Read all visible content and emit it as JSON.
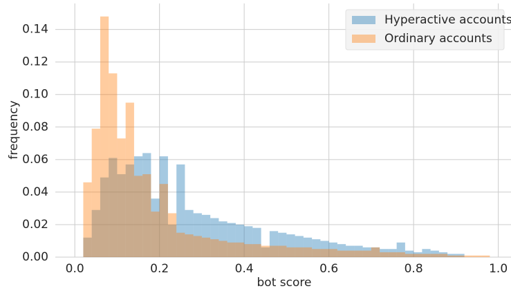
{
  "chart_data": {
    "type": "histogram",
    "xlabel": "bot score",
    "ylabel": "frequency",
    "bins": [
      0.02,
      0.04,
      0.06,
      0.08,
      0.1,
      0.12,
      0.14,
      0.16,
      0.18,
      0.2,
      0.22,
      0.24,
      0.26,
      0.28,
      0.3,
      0.32,
      0.34,
      0.36,
      0.38,
      0.4,
      0.42,
      0.44,
      0.46,
      0.48,
      0.5,
      0.52,
      0.54,
      0.56,
      0.58,
      0.6,
      0.62,
      0.64,
      0.66,
      0.68,
      0.7,
      0.72,
      0.74,
      0.76,
      0.78,
      0.8,
      0.82,
      0.84,
      0.86,
      0.88,
      0.9,
      0.92,
      0.94,
      0.96,
      0.98
    ],
    "series": [
      {
        "name": "Hyperactive accounts",
        "color": "#1f77b4",
        "values": [
          0.012,
          0.029,
          0.049,
          0.061,
          0.051,
          0.057,
          0.062,
          0.064,
          0.036,
          0.062,
          0.02,
          0.057,
          0.029,
          0.027,
          0.026,
          0.024,
          0.022,
          0.021,
          0.02,
          0.019,
          0.018,
          0.006,
          0.016,
          0.015,
          0.014,
          0.013,
          0.012,
          0.011,
          0.01,
          0.009,
          0.008,
          0.007,
          0.007,
          0.006,
          0.006,
          0.005,
          0.005,
          0.009,
          0.004,
          0.003,
          0.005,
          0.004,
          0.003,
          0.002,
          0.002,
          0,
          0,
          0
        ]
      },
      {
        "name": "Ordinary accounts",
        "color": "#ff7f0e",
        "values": [
          0.046,
          0.079,
          0.148,
          0.113,
          0.073,
          0.095,
          0.05,
          0.051,
          0.028,
          0.045,
          0.027,
          0.015,
          0.014,
          0.013,
          0.012,
          0.011,
          0.01,
          0.009,
          0.009,
          0.008,
          0.008,
          0.007,
          0.007,
          0.007,
          0.006,
          0.006,
          0.006,
          0.005,
          0.005,
          0.005,
          0.004,
          0.004,
          0.004,
          0.004,
          0.006,
          0.003,
          0.003,
          0.003,
          0.002,
          0.002,
          0.002,
          0.002,
          0.002,
          0.001,
          0.001,
          0.001,
          0.001,
          0.001
        ]
      }
    ],
    "xlim": [
      -0.046,
      1.03
    ],
    "ylim": [
      0,
      0.156
    ],
    "xticks": [
      {
        "value": 0,
        "label": "0.0"
      },
      {
        "value": 0.2,
        "label": "0.2"
      },
      {
        "value": 0.4,
        "label": "0.4"
      },
      {
        "value": 0.6,
        "label": "0.6"
      },
      {
        "value": 0.8,
        "label": "0.8"
      },
      {
        "value": 1,
        "label": "1.0"
      }
    ],
    "yticks": [
      {
        "value": 0,
        "label": "0.00"
      },
      {
        "value": 0.02,
        "label": "0.02"
      },
      {
        "value": 0.04,
        "label": "0.04"
      },
      {
        "value": 0.06,
        "label": "0.06"
      },
      {
        "value": 0.08,
        "label": "0.08"
      },
      {
        "value": 0.1,
        "label": "0.10"
      },
      {
        "value": 0.12,
        "label": "0.12"
      },
      {
        "value": 0.14,
        "label": "0.14"
      }
    ],
    "grid": true,
    "legend": "upper right"
  }
}
